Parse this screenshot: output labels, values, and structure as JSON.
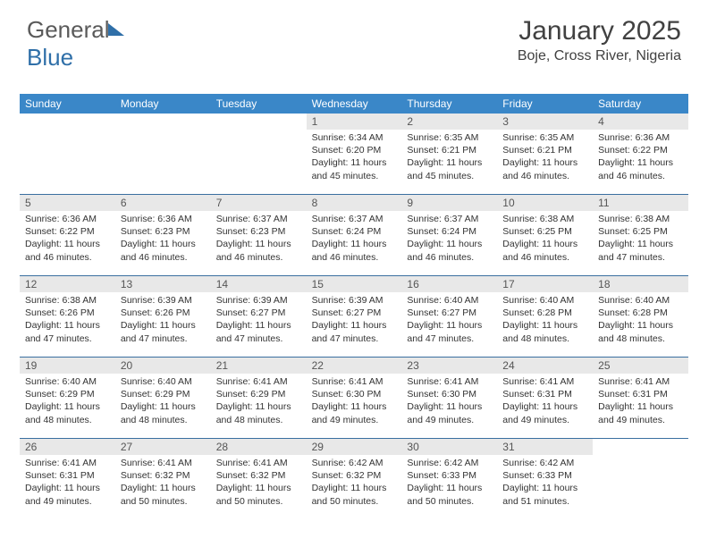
{
  "logo": {
    "text1": "General",
    "text2": "Blue"
  },
  "header": {
    "title": "January 2025",
    "subtitle": "Boje, Cross River, Nigeria"
  },
  "styling": {
    "header_bg": "#3a87c8",
    "header_fg": "#ffffff",
    "daynum_bg": "#e8e8e8",
    "border_color": "#3a6fa0",
    "title_fontsize": 30,
    "subtitle_fontsize": 16,
    "dayhead_fontsize": 12,
    "info_fontsize": 10.5,
    "columns": 7
  },
  "dayNames": [
    "Sunday",
    "Monday",
    "Tuesday",
    "Wednesday",
    "Thursday",
    "Friday",
    "Saturday"
  ],
  "weeks": [
    [
      null,
      null,
      null,
      {
        "n": "1",
        "sr": "6:34 AM",
        "ss": "6:20 PM",
        "dh": "11",
        "dm": "45"
      },
      {
        "n": "2",
        "sr": "6:35 AM",
        "ss": "6:21 PM",
        "dh": "11",
        "dm": "45"
      },
      {
        "n": "3",
        "sr": "6:35 AM",
        "ss": "6:21 PM",
        "dh": "11",
        "dm": "46"
      },
      {
        "n": "4",
        "sr": "6:36 AM",
        "ss": "6:22 PM",
        "dh": "11",
        "dm": "46"
      }
    ],
    [
      {
        "n": "5",
        "sr": "6:36 AM",
        "ss": "6:22 PM",
        "dh": "11",
        "dm": "46"
      },
      {
        "n": "6",
        "sr": "6:36 AM",
        "ss": "6:23 PM",
        "dh": "11",
        "dm": "46"
      },
      {
        "n": "7",
        "sr": "6:37 AM",
        "ss": "6:23 PM",
        "dh": "11",
        "dm": "46"
      },
      {
        "n": "8",
        "sr": "6:37 AM",
        "ss": "6:24 PM",
        "dh": "11",
        "dm": "46"
      },
      {
        "n": "9",
        "sr": "6:37 AM",
        "ss": "6:24 PM",
        "dh": "11",
        "dm": "46"
      },
      {
        "n": "10",
        "sr": "6:38 AM",
        "ss": "6:25 PM",
        "dh": "11",
        "dm": "46"
      },
      {
        "n": "11",
        "sr": "6:38 AM",
        "ss": "6:25 PM",
        "dh": "11",
        "dm": "47"
      }
    ],
    [
      {
        "n": "12",
        "sr": "6:38 AM",
        "ss": "6:26 PM",
        "dh": "11",
        "dm": "47"
      },
      {
        "n": "13",
        "sr": "6:39 AM",
        "ss": "6:26 PM",
        "dh": "11",
        "dm": "47"
      },
      {
        "n": "14",
        "sr": "6:39 AM",
        "ss": "6:27 PM",
        "dh": "11",
        "dm": "47"
      },
      {
        "n": "15",
        "sr": "6:39 AM",
        "ss": "6:27 PM",
        "dh": "11",
        "dm": "47"
      },
      {
        "n": "16",
        "sr": "6:40 AM",
        "ss": "6:27 PM",
        "dh": "11",
        "dm": "47"
      },
      {
        "n": "17",
        "sr": "6:40 AM",
        "ss": "6:28 PM",
        "dh": "11",
        "dm": "48"
      },
      {
        "n": "18",
        "sr": "6:40 AM",
        "ss": "6:28 PM",
        "dh": "11",
        "dm": "48"
      }
    ],
    [
      {
        "n": "19",
        "sr": "6:40 AM",
        "ss": "6:29 PM",
        "dh": "11",
        "dm": "48"
      },
      {
        "n": "20",
        "sr": "6:40 AM",
        "ss": "6:29 PM",
        "dh": "11",
        "dm": "48"
      },
      {
        "n": "21",
        "sr": "6:41 AM",
        "ss": "6:29 PM",
        "dh": "11",
        "dm": "48"
      },
      {
        "n": "22",
        "sr": "6:41 AM",
        "ss": "6:30 PM",
        "dh": "11",
        "dm": "49"
      },
      {
        "n": "23",
        "sr": "6:41 AM",
        "ss": "6:30 PM",
        "dh": "11",
        "dm": "49"
      },
      {
        "n": "24",
        "sr": "6:41 AM",
        "ss": "6:31 PM",
        "dh": "11",
        "dm": "49"
      },
      {
        "n": "25",
        "sr": "6:41 AM",
        "ss": "6:31 PM",
        "dh": "11",
        "dm": "49"
      }
    ],
    [
      {
        "n": "26",
        "sr": "6:41 AM",
        "ss": "6:31 PM",
        "dh": "11",
        "dm": "49"
      },
      {
        "n": "27",
        "sr": "6:41 AM",
        "ss": "6:32 PM",
        "dh": "11",
        "dm": "50"
      },
      {
        "n": "28",
        "sr": "6:41 AM",
        "ss": "6:32 PM",
        "dh": "11",
        "dm": "50"
      },
      {
        "n": "29",
        "sr": "6:42 AM",
        "ss": "6:32 PM",
        "dh": "11",
        "dm": "50"
      },
      {
        "n": "30",
        "sr": "6:42 AM",
        "ss": "6:33 PM",
        "dh": "11",
        "dm": "50"
      },
      {
        "n": "31",
        "sr": "6:42 AM",
        "ss": "6:33 PM",
        "dh": "11",
        "dm": "51"
      },
      null
    ]
  ]
}
